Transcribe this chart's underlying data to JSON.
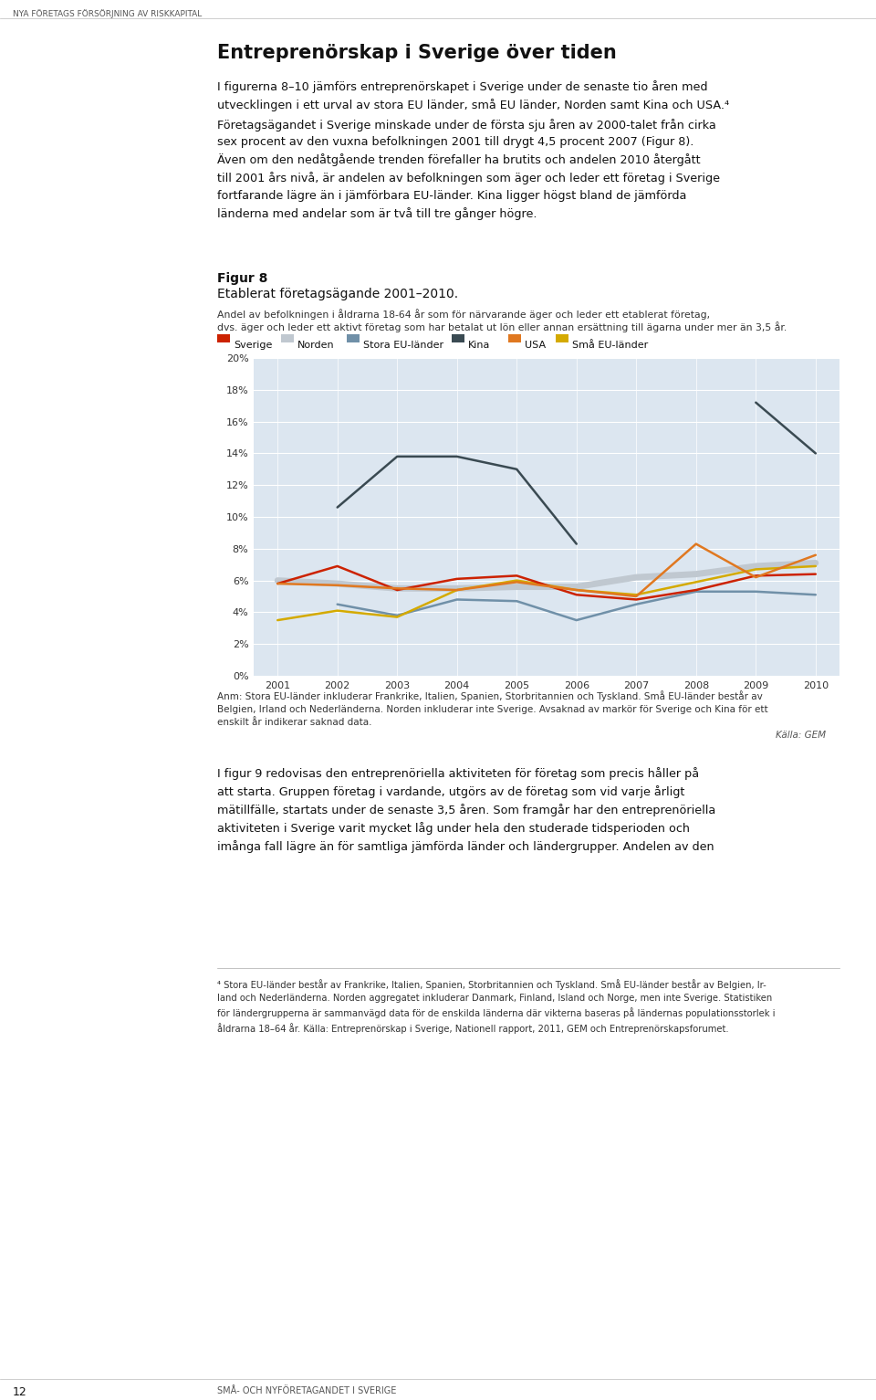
{
  "years": [
    2001,
    2002,
    2003,
    2004,
    2005,
    2006,
    2007,
    2008,
    2009,
    2010
  ],
  "series": {
    "Sverige": {
      "values": [
        5.8,
        6.9,
        5.4,
        6.1,
        6.3,
        5.1,
        4.8,
        5.4,
        6.3,
        6.4
      ],
      "color": "#cc2200",
      "linewidth": 1.8,
      "zorder": 5
    },
    "Norden": {
      "values": [
        6.0,
        5.8,
        5.5,
        5.5,
        5.6,
        5.6,
        6.2,
        6.4,
        6.9,
        7.1
      ],
      "color": "#c0c8d0",
      "linewidth": 5.0,
      "zorder": 2
    },
    "Stora EU-länder": {
      "values": [
        null,
        4.5,
        3.8,
        4.8,
        4.7,
        3.5,
        4.5,
        5.3,
        5.3,
        5.1
      ],
      "color": "#7090a8",
      "linewidth": 1.8,
      "zorder": 4
    },
    "Kina": {
      "values": [
        null,
        10.6,
        13.8,
        13.8,
        13.0,
        8.3,
        null,
        null,
        17.2,
        14.0
      ],
      "color": "#3a4a52",
      "linewidth": 1.8,
      "zorder": 6
    },
    "USA": {
      "values": [
        5.8,
        5.7,
        5.5,
        5.4,
        5.9,
        5.4,
        5.0,
        8.3,
        6.2,
        7.6
      ],
      "color": "#e07820",
      "linewidth": 1.8,
      "zorder": 5
    },
    "Sma EU-lander": {
      "values": [
        3.5,
        4.1,
        3.7,
        5.4,
        6.0,
        5.4,
        5.1,
        5.9,
        6.7,
        6.9
      ],
      "color": "#d4aa00",
      "linewidth": 1.8,
      "zorder": 4
    }
  },
  "legend_labels": [
    "Sverige",
    "Norden",
    "Stora EU-länder",
    "Kina",
    "USA",
    "Små EU-länder"
  ],
  "legend_colors": [
    "#cc2200",
    "#c0c8d0",
    "#7090a8",
    "#3a4a52",
    "#e07820",
    "#d4aa00"
  ],
  "ylim": [
    0,
    20
  ],
  "yticks": [
    0,
    2,
    4,
    6,
    8,
    10,
    12,
    14,
    16,
    18,
    20
  ],
  "background_color": "#dce6f0",
  "page_background": "#ffffff"
}
